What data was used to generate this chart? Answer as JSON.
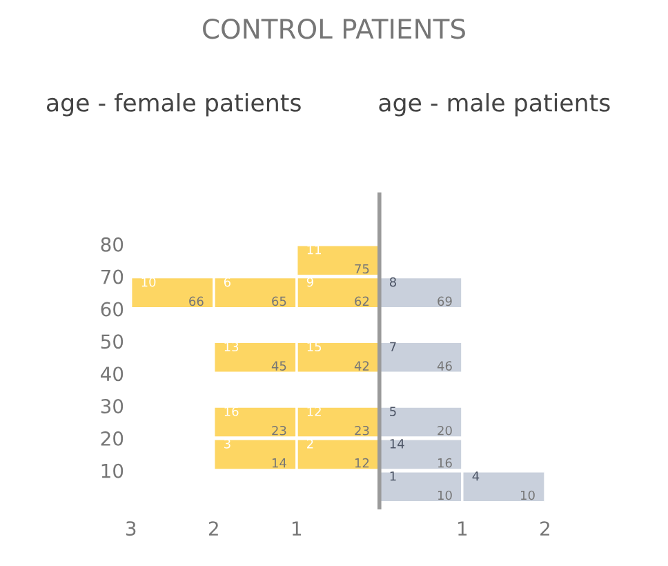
{
  "chart_data": {
    "type": "bar",
    "orientation": "horizontal",
    "stacked": true,
    "title": "CONTROL PATIENTS",
    "x": [
      75,
      65,
      45,
      25,
      15,
      5
    ],
    "series": [
      {
        "color": "#fdd663",
        "values": [
          -1,
          -1,
          -1,
          -1,
          -1,
          null
        ]
      },
      {
        "color": "#fdd663",
        "values": [
          null,
          -1,
          -1,
          -1,
          -1,
          null
        ]
      },
      {
        "color": "#fdd663",
        "values": [
          null,
          -1,
          null,
          null,
          null,
          null
        ]
      },
      {
        "color": "#c9d0dc",
        "values": [
          null,
          1,
          1,
          1,
          1,
          1
        ]
      },
      {
        "color": "#c9d0dc",
        "values": [
          null,
          null,
          null,
          null,
          null,
          1
        ]
      }
    ],
    "xlim": [
      -3,
      2
    ],
    "xticks": [
      {
        "value": -3,
        "label": "3"
      },
      {
        "value": -2,
        "label": "2"
      },
      {
        "value": -1,
        "label": "1"
      },
      1,
      2
    ],
    "ylim": [
      -2,
      96
    ],
    "yticks": [
      10,
      20,
      30,
      40,
      50,
      60,
      70,
      80
    ],
    "grid": false,
    "legend": false,
    "annotations": [
      "age - female patients",
      "age - male patients",
      {
        "text": "11",
        "x": -1,
        "y": 75
      },
      {
        "text": "75",
        "x": 0,
        "y": 75
      },
      {
        "text": "9",
        "x": -1,
        "y": 65
      },
      {
        "text": "62",
        "x": 0,
        "y": 65
      },
      {
        "text": "6",
        "x": -2,
        "y": 65
      },
      {
        "text": "65",
        "x": -1,
        "y": 65
      },
      {
        "text": "10",
        "x": -3,
        "y": 65
      },
      {
        "text": "66",
        "x": -2,
        "y": 65
      },
      {
        "text": "8",
        "x": 0,
        "y": 65
      },
      {
        "text": "69",
        "x": 1,
        "y": 65
      },
      {
        "text": "15",
        "x": -1,
        "y": 45
      },
      {
        "text": "42",
        "x": 0,
        "y": 45
      },
      {
        "text": "13",
        "x": -2,
        "y": 45
      },
      {
        "text": "45",
        "x": -1,
        "y": 45
      },
      {
        "text": "7",
        "x": 0,
        "y": 45
      },
      {
        "text": "46",
        "x": 1,
        "y": 45
      },
      {
        "text": "12",
        "x": -1,
        "y": 25
      },
      {
        "text": "23",
        "x": 0,
        "y": 25
      },
      {
        "text": "16",
        "x": -2,
        "y": 25
      },
      {
        "text": "23",
        "x": -1,
        "y": 25
      },
      {
        "text": "5",
        "x": 0,
        "y": 25
      },
      {
        "text": "20",
        "x": 1,
        "y": 25
      },
      {
        "text": "2",
        "x": -1,
        "y": 15
      },
      {
        "text": "12",
        "x": 0,
        "y": 15
      },
      {
        "text": "3",
        "x": -2,
        "y": 15
      },
      {
        "text": "14",
        "x": -1,
        "y": 15
      },
      {
        "text": "14",
        "x": 0,
        "y": 15
      },
      {
        "text": "16",
        "x": 1,
        "y": 15
      },
      {
        "text": "1",
        "x": 0,
        "y": 5
      },
      {
        "text": "10",
        "x": 1,
        "y": 5
      },
      {
        "text": "4",
        "x": 1,
        "y": 5
      },
      {
        "text": "10",
        "x": 2,
        "y": 5
      }
    ]
  }
}
